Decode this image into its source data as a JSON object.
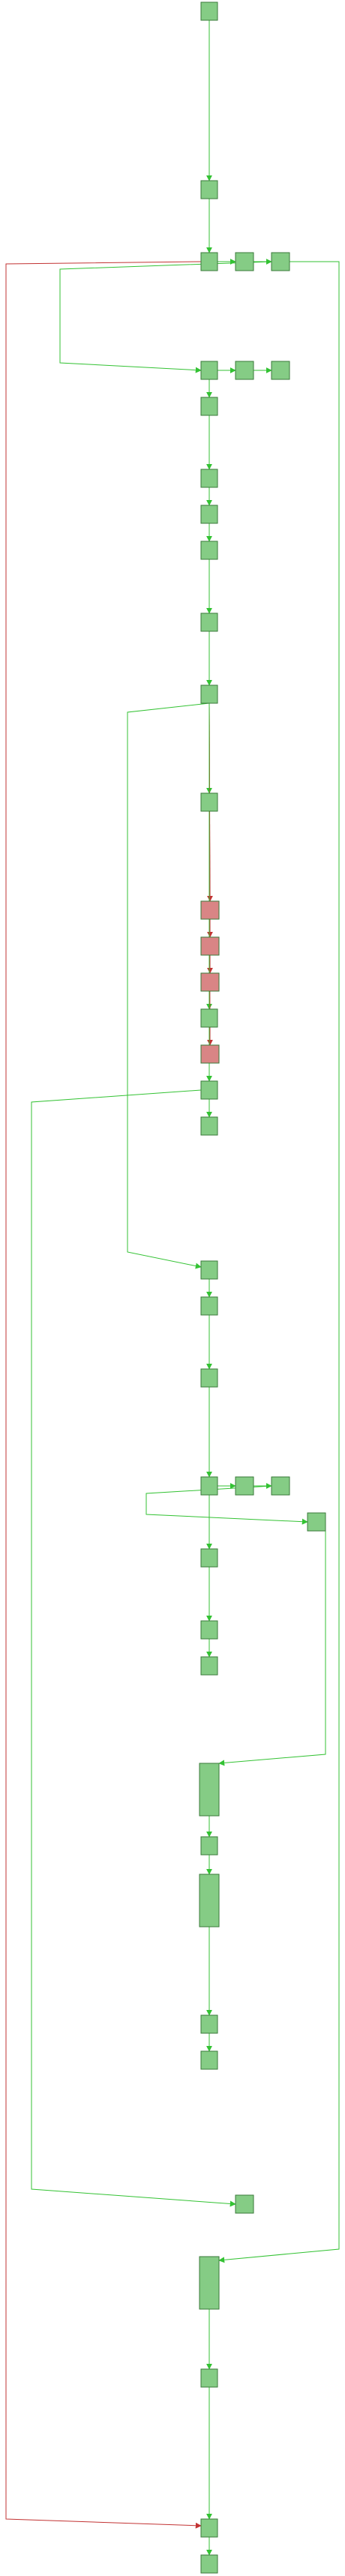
{
  "colors": {
    "node_ok": "#85cc85",
    "node_err": "#d98585",
    "node_stroke": "#3a7a3a",
    "edge_ok": "#33c233",
    "edge_err": "#c23333"
  },
  "nodes": [
    {
      "id": "n1",
      "kind": "ok"
    },
    {
      "id": "n2",
      "kind": "ok"
    },
    {
      "id": "n3",
      "kind": "ok"
    },
    {
      "id": "n3b",
      "kind": "ok"
    },
    {
      "id": "n3c",
      "kind": "ok"
    },
    {
      "id": "n4",
      "kind": "ok"
    },
    {
      "id": "n4b",
      "kind": "ok"
    },
    {
      "id": "n4c",
      "kind": "ok"
    },
    {
      "id": "n5",
      "kind": "ok"
    },
    {
      "id": "n6",
      "kind": "ok"
    },
    {
      "id": "n7",
      "kind": "ok"
    },
    {
      "id": "n8",
      "kind": "ok"
    },
    {
      "id": "n9",
      "kind": "ok"
    },
    {
      "id": "n10",
      "kind": "ok"
    },
    {
      "id": "n11",
      "kind": "ok"
    },
    {
      "id": "e1",
      "kind": "err"
    },
    {
      "id": "e2",
      "kind": "err"
    },
    {
      "id": "e3",
      "kind": "err"
    },
    {
      "id": "n12",
      "kind": "ok"
    },
    {
      "id": "e4",
      "kind": "err"
    },
    {
      "id": "n13",
      "kind": "ok"
    },
    {
      "id": "n14",
      "kind": "ok"
    },
    {
      "id": "n15",
      "kind": "ok"
    },
    {
      "id": "n16",
      "kind": "ok"
    },
    {
      "id": "n17",
      "kind": "ok"
    },
    {
      "id": "n18",
      "kind": "ok"
    },
    {
      "id": "n18b",
      "kind": "ok"
    },
    {
      "id": "n18c",
      "kind": "ok"
    },
    {
      "id": "n18d",
      "kind": "ok"
    },
    {
      "id": "n19",
      "kind": "ok"
    },
    {
      "id": "n20",
      "kind": "ok"
    },
    {
      "id": "n21",
      "kind": "ok"
    },
    {
      "id": "n22",
      "kind": "ok"
    },
    {
      "id": "n23",
      "kind": "ok"
    },
    {
      "id": "n24",
      "kind": "ok"
    },
    {
      "id": "n25",
      "kind": "ok"
    },
    {
      "id": "n26",
      "kind": "ok"
    },
    {
      "id": "n27",
      "kind": "ok"
    },
    {
      "id": "n28",
      "kind": "ok"
    },
    {
      "id": "n29",
      "kind": "ok"
    },
    {
      "id": "n30",
      "kind": "ok"
    },
    {
      "id": "n31",
      "kind": "ok"
    }
  ],
  "edges": [
    {
      "from": "n1",
      "to": "n2",
      "kind": "ok"
    },
    {
      "from": "n2",
      "to": "n3",
      "kind": "ok"
    },
    {
      "from": "n3",
      "to": "n3b",
      "kind": "ok"
    },
    {
      "from": "n3b",
      "to": "n3c",
      "kind": "ok"
    },
    {
      "from": "n3c",
      "to": "n4",
      "kind": "ok"
    },
    {
      "from": "n4",
      "to": "n4b",
      "kind": "ok"
    },
    {
      "from": "n4b",
      "to": "n4c",
      "kind": "ok"
    },
    {
      "from": "n4",
      "to": "n5",
      "kind": "ok"
    },
    {
      "from": "n5",
      "to": "n6",
      "kind": "ok"
    },
    {
      "from": "n6",
      "to": "n7",
      "kind": "ok"
    },
    {
      "from": "n7",
      "to": "n8",
      "kind": "ok"
    },
    {
      "from": "n8",
      "to": "n9",
      "kind": "ok"
    },
    {
      "from": "n9",
      "to": "n10",
      "kind": "ok"
    },
    {
      "from": "n10",
      "to": "n11",
      "kind": "ok"
    },
    {
      "from": "n10",
      "to": "e1",
      "kind": "err"
    },
    {
      "from": "n10",
      "to": "e2",
      "kind": "err"
    },
    {
      "from": "n10",
      "to": "e3",
      "kind": "err"
    },
    {
      "from": "n10",
      "to": "n12",
      "kind": "ok"
    },
    {
      "from": "n10",
      "to": "e4",
      "kind": "err"
    },
    {
      "from": "n10",
      "to": "n13",
      "kind": "ok"
    },
    {
      "from": "n10",
      "to": "n14",
      "kind": "ok"
    },
    {
      "from": "n10",
      "to": "n15",
      "kind": "ok"
    },
    {
      "from": "n15",
      "to": "n16",
      "kind": "ok"
    },
    {
      "from": "n16",
      "to": "n17",
      "kind": "ok"
    },
    {
      "from": "n17",
      "to": "n18",
      "kind": "ok"
    },
    {
      "from": "n18",
      "to": "n18b",
      "kind": "ok"
    },
    {
      "from": "n18b",
      "to": "n18c",
      "kind": "ok"
    },
    {
      "from": "n18c",
      "to": "n18d",
      "kind": "ok"
    },
    {
      "from": "n18",
      "to": "n19",
      "kind": "ok"
    },
    {
      "from": "n19",
      "to": "n20",
      "kind": "ok"
    },
    {
      "from": "n20",
      "to": "n21",
      "kind": "ok"
    },
    {
      "from": "n18d",
      "to": "n22",
      "kind": "ok"
    },
    {
      "from": "n22",
      "to": "n23",
      "kind": "ok"
    },
    {
      "from": "n23",
      "to": "n24",
      "kind": "ok"
    },
    {
      "from": "n24",
      "to": "n25",
      "kind": "ok"
    },
    {
      "from": "n25",
      "to": "n26",
      "kind": "ok"
    },
    {
      "from": "n13",
      "to": "n27",
      "kind": "ok"
    },
    {
      "from": "n3c",
      "to": "n28",
      "kind": "ok"
    },
    {
      "from": "n28",
      "to": "n29",
      "kind": "ok"
    },
    {
      "from": "n3",
      "to": "n30",
      "kind": "err"
    },
    {
      "from": "n29",
      "to": "n30",
      "kind": "ok"
    },
    {
      "from": "n30",
      "to": "n31",
      "kind": "ok"
    }
  ]
}
